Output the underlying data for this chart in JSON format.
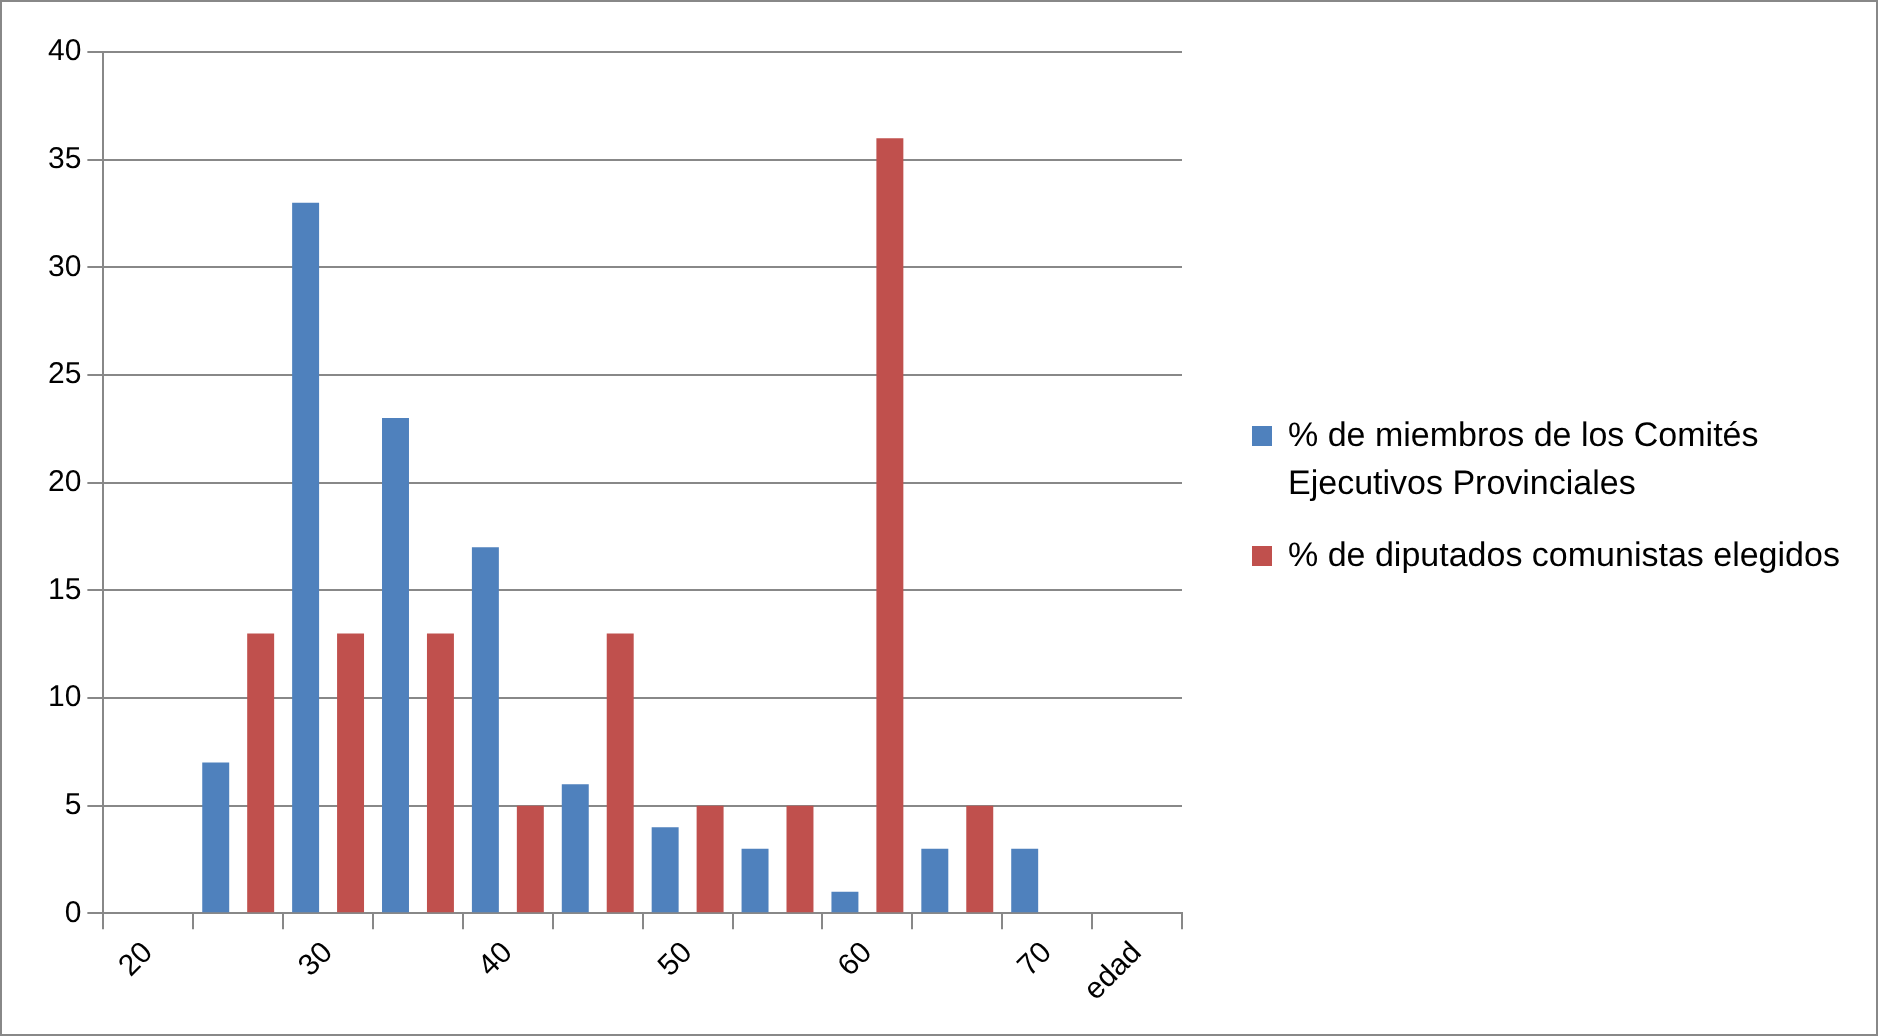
{
  "chart_data": {
    "type": "bar",
    "categories": [
      "20",
      null,
      "30",
      null,
      "40",
      null,
      "50",
      null,
      "60",
      null,
      "70",
      "edad"
    ],
    "series": [
      {
        "name": "% de miembros de los Comités Ejecutivos Provinciales",
        "color": "#4f81bd",
        "values": [
          null,
          7,
          33,
          23,
          17,
          6,
          4,
          3,
          1,
          3,
          3,
          null
        ]
      },
      {
        "name": "% de diputados comunistas elegidos",
        "color": "#c0504d",
        "values": [
          null,
          13,
          13,
          13,
          5,
          13,
          5,
          5,
          36,
          5,
          null,
          null
        ]
      }
    ],
    "ylim": [
      0,
      40
    ],
    "yticks": [
      0,
      5,
      10,
      15,
      20,
      25,
      30,
      35,
      40
    ],
    "grid": "y",
    "legend": "right"
  }
}
